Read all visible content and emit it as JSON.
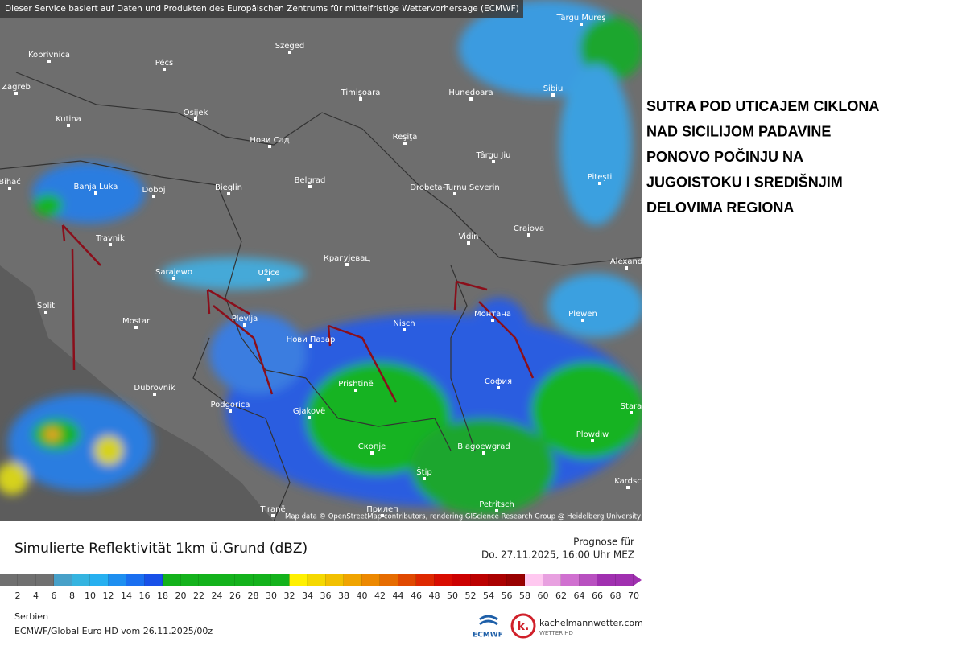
{
  "header": {
    "attribution": "Dieser Service basiert auf Daten und Produkten des Europäischen Zentrums für mittelfristige Wettervorhersage (ECMWF)"
  },
  "map": {
    "cities": [
      "Koprivnica",
      "Pécs",
      "Szeged",
      "Zagreb",
      "Osijek",
      "Timişoara",
      "Hunedoara",
      "Sibiu",
      "Târgu Mureș",
      "Kutina",
      "Нови Сад",
      "Reşiţa",
      "Târgu Jiu",
      "Bihać",
      "Banja Luka",
      "Doboj",
      "Bieglin",
      "Belgrad",
      "Drobeta-Turnu Severin",
      "Piteşti",
      "Travnik",
      "Craiova",
      "Sarajewo",
      "Užice",
      "Крагујевац",
      "Vidin",
      "Alexand",
      "Split",
      "Mostar",
      "Plevlja",
      "Nisch",
      "Монтана",
      "Plewen",
      "Нови Пазар",
      "Dubrovnik",
      "Prishtinë",
      "София",
      "Podgorica",
      "Gjakovë",
      "Stara",
      "Plowdiw",
      "Скопје",
      "Blagoewgrad",
      "Štip",
      "Kardsc",
      "Tiranë",
      "Прилеп",
      "Petritsch"
    ],
    "credit": "Map data © OpenStreetMap contributors, rendering GIScience Research Group @ Heidelberg University"
  },
  "annotation": [
    "SUTRA POD UTICAJEM CIKLONA",
    "NAD SICILIJOM PADAVINE",
    "PONOVO POČINJU NA",
    "JUGOISTOKU I SREDIŠNJIM",
    "DELOVIMA REGIONA"
  ],
  "legend": {
    "title": "Simulierte Reflektivität 1km ü.Grund (dBZ)",
    "forecast_label": "Prognose für",
    "forecast_time": "Do. 27.11.2025, 16:00 Uhr MEZ",
    "ticks": [
      2,
      4,
      6,
      8,
      10,
      12,
      14,
      16,
      18,
      20,
      22,
      24,
      26,
      28,
      30,
      32,
      34,
      36,
      38,
      40,
      42,
      44,
      46,
      48,
      50,
      52,
      54,
      56,
      58,
      60,
      62,
      64,
      66,
      68,
      70
    ]
  },
  "footer": {
    "region": "Serbien",
    "model_run": "ECMWF/Global Euro HD vom  26.11.2025/00z",
    "ecmwf_logo": "ECMWF",
    "k_logo": "k.",
    "site": "kachelmannwetter.com",
    "site_sub": "WETTER HD"
  }
}
